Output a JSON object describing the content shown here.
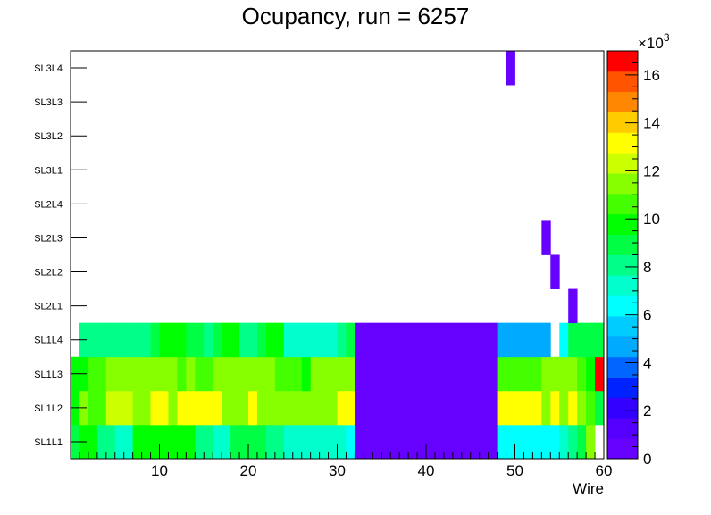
{
  "chart_data": {
    "type": "heatmap",
    "title": "Ocupancy, run = 6257",
    "xlabel": "Wire",
    "ylabel": "",
    "xlim": [
      0,
      60
    ],
    "x_ticks": [
      10,
      20,
      30,
      40,
      50,
      60
    ],
    "y_categories": [
      "SL1L1",
      "SL1L2",
      "SL1L3",
      "SL1L4",
      "SL2L1",
      "SL2L2",
      "SL2L3",
      "SL2L4",
      "SL3L1",
      "SL3L2",
      "SL3L3",
      "SL3L4"
    ],
    "colorbar": {
      "multiplier_label": "×10",
      "multiplier_exponent": "3",
      "min": 0,
      "max": 17000,
      "ticks": [
        0,
        2,
        4,
        6,
        8,
        10,
        12,
        14,
        16
      ],
      "palette": [
        "#6600ff",
        "#5500ff",
        "#3300ff",
        "#0022ff",
        "#0066ff",
        "#00aaff",
        "#00ccff",
        "#00ffff",
        "#00ffcc",
        "#00ff88",
        "#00ff44",
        "#00ff00",
        "#44ff00",
        "#88ff00",
        "#ccff00",
        "#ffff00",
        "#ffcc00",
        "#ff8800",
        "#ff5500",
        "#ff0000"
      ]
    },
    "rows": {
      "SL1L1": [
        8800,
        9800,
        9800,
        8200,
        8200,
        7400,
        7400,
        9800,
        9800,
        9800,
        9800,
        9800,
        9800,
        9800,
        8200,
        8200,
        7400,
        7400,
        8800,
        8800,
        8800,
        8800,
        8200,
        8200,
        6800,
        6800,
        6800,
        7400,
        7400,
        7400,
        7400,
        6200,
        800,
        800,
        800,
        800,
        800,
        800,
        800,
        800,
        800,
        800,
        800,
        800,
        800,
        800,
        800,
        800,
        6200,
        6200,
        6200,
        6200,
        6200,
        6200,
        6200,
        7400,
        8200,
        8800,
        11500,
        0
      ],
      "SL1L2": [
        9800,
        11500,
        10400,
        10400,
        12200,
        12200,
        12200,
        11800,
        11800,
        12800,
        12800,
        11800,
        12800,
        12800,
        12800,
        12800,
        12800,
        11500,
        11500,
        11800,
        12800,
        11500,
        11800,
        11800,
        11500,
        11500,
        11500,
        11500,
        11500,
        11800,
        12800,
        12800,
        800,
        800,
        800,
        800,
        800,
        800,
        800,
        800,
        800,
        800,
        800,
        800,
        800,
        800,
        800,
        800,
        12800,
        12800,
        12800,
        12800,
        12800,
        11800,
        12800,
        11800,
        12800,
        11500,
        10400,
        8800
      ],
      "SL1L3": [
        9800,
        9800,
        10400,
        10400,
        11500,
        11500,
        11500,
        11500,
        11500,
        11500,
        11500,
        11800,
        10400,
        11500,
        10400,
        10400,
        11800,
        11800,
        11800,
        11800,
        11800,
        11800,
        11800,
        10400,
        10400,
        10400,
        9800,
        11500,
        11500,
        11500,
        11500,
        11500,
        800,
        800,
        800,
        800,
        800,
        800,
        800,
        800,
        800,
        800,
        800,
        800,
        800,
        800,
        800,
        800,
        10400,
        10400,
        10400,
        10400,
        10400,
        11500,
        11500,
        11500,
        11500,
        10400,
        9800,
        16800
      ],
      "SL1L4": [
        null,
        8200,
        8200,
        8200,
        8200,
        8200,
        8200,
        8200,
        8200,
        9200,
        9800,
        9800,
        9800,
        9200,
        9200,
        8200,
        9200,
        9800,
        9800,
        8200,
        8200,
        9200,
        9800,
        9800,
        6800,
        6800,
        6800,
        6800,
        6800,
        6800,
        8200,
        9200,
        800,
        800,
        800,
        800,
        800,
        800,
        800,
        800,
        800,
        800,
        800,
        800,
        800,
        800,
        800,
        800,
        5000,
        5000,
        5000,
        5000,
        5000,
        5000,
        null,
        6200,
        9200,
        9200,
        9200,
        9200
      ],
      "SL2L1": {
        "56": 800
      },
      "SL2L2": {
        "54": 800
      },
      "SL2L3": {
        "53": 800
      },
      "SL2L4": {},
      "SL3L1": {},
      "SL3L2": {},
      "SL3L3": {},
      "SL3L4": {
        "49": 800
      }
    }
  }
}
